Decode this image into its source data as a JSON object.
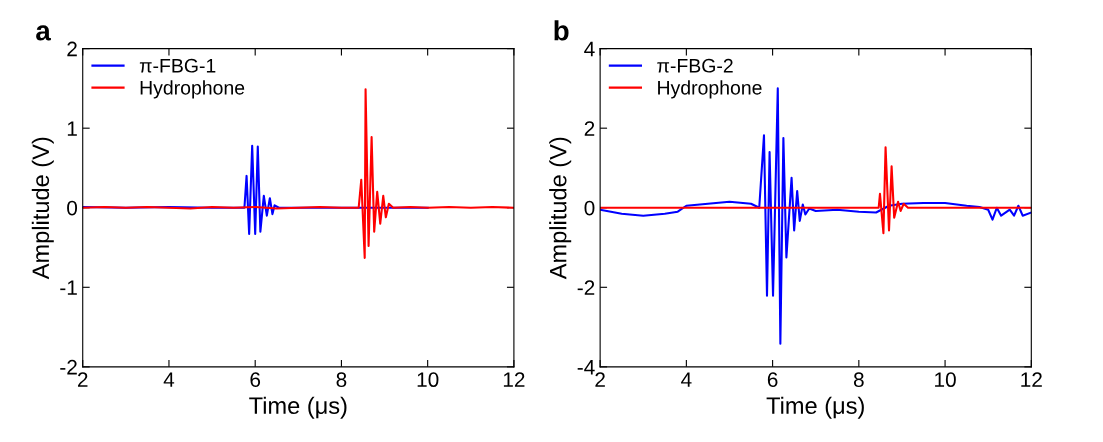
{
  "chart_data": [
    {
      "type": "line",
      "title": "a",
      "xlabel": "Time (μs)",
      "ylabel": "Amplitude (V)",
      "xlim": [
        2,
        12
      ],
      "ylim": [
        -2,
        2
      ],
      "xticks": [
        2,
        4,
        6,
        8,
        10,
        12
      ],
      "yticks": [
        -2,
        -1,
        0,
        1,
        2
      ],
      "legend": "top left",
      "grid": false,
      "series": [
        {
          "name": "π-FBG-1",
          "color": "#0000ff",
          "x": [
            2,
            3,
            4,
            5,
            5.6,
            5.75,
            5.8,
            5.86,
            5.93,
            6.0,
            6.06,
            6.12,
            6.2,
            6.27,
            6.34,
            6.4,
            6.45,
            6.55,
            7,
            8,
            9,
            10
          ],
          "values": [
            0.01,
            0,
            0.01,
            0,
            0,
            0,
            0.4,
            -0.33,
            0.78,
            -0.33,
            0.77,
            -0.3,
            0.15,
            -0.1,
            0.12,
            -0.08,
            0.03,
            0,
            0,
            0,
            0,
            0
          ]
        },
        {
          "name": "Hydrophone",
          "color": "#ff0000",
          "x": [
            2,
            2.5,
            3,
            3.5,
            4,
            4.5,
            5,
            5.5,
            6,
            6.5,
            7,
            7.5,
            8,
            8.4,
            8.46,
            8.54,
            8.56,
            8.63,
            8.7,
            8.76,
            8.83,
            8.9,
            8.97,
            9.03,
            9.1,
            9.2,
            9.6,
            10,
            10.5,
            11,
            11.5,
            12
          ],
          "values": [
            0,
            0.01,
            0,
            0.01,
            0,
            -0.01,
            0.01,
            0,
            0.01,
            -0.01,
            0,
            0.01,
            0,
            0,
            0.35,
            -0.63,
            1.49,
            -0.48,
            0.89,
            -0.3,
            0.2,
            -0.2,
            0.15,
            -0.12,
            0.05,
            0,
            0.01,
            0,
            0.01,
            0,
            0.01,
            0
          ]
        }
      ]
    },
    {
      "type": "line",
      "title": "b",
      "xlabel": "Time (μs)",
      "ylabel": "Amplitude (V)",
      "xlim": [
        2,
        12
      ],
      "ylim": [
        -4,
        4
      ],
      "xticks": [
        2,
        4,
        6,
        8,
        10,
        12
      ],
      "yticks": [
        -4,
        -2,
        0,
        2,
        4
      ],
      "legend": "top left",
      "grid": false,
      "series": [
        {
          "name": "π-FBG-2",
          "color": "#0000ff",
          "x": [
            2,
            2.5,
            3,
            3.5,
            3.8,
            4,
            4.5,
            5,
            5.5,
            5.69,
            5.8,
            5.87,
            5.93,
            6.01,
            6.12,
            6.18,
            6.25,
            6.32,
            6.44,
            6.5,
            6.57,
            6.63,
            6.7,
            6.76,
            6.85,
            7,
            7.5,
            8,
            8.4,
            8.7,
            9,
            9.5,
            10,
            10.5,
            10.8,
            11,
            11.1,
            11.2,
            11.3,
            11.5,
            11.6,
            11.7,
            11.8,
            12
          ],
          "values": [
            -0.05,
            -0.15,
            -0.2,
            -0.15,
            -0.1,
            0.05,
            0.1,
            0.15,
            0.1,
            0,
            1.82,
            -2.21,
            1.4,
            -2.21,
            3.0,
            -3.42,
            1.75,
            -1.25,
            0.75,
            -0.57,
            0.42,
            -0.33,
            0.08,
            -0.17,
            -0.02,
            -0.08,
            -0.05,
            -0.1,
            -0.12,
            0.05,
            0.1,
            0.12,
            0.12,
            0.05,
            0.02,
            -0.05,
            -0.3,
            0,
            -0.2,
            -0.05,
            -0.2,
            0.05,
            -0.2,
            -0.12
          ]
        },
        {
          "name": "Hydrophone",
          "color": "#ff0000",
          "x": [
            2,
            3,
            4,
            5,
            6,
            7,
            8,
            8.46,
            8.49,
            8.57,
            8.62,
            8.7,
            8.76,
            8.82,
            8.91,
            8.97,
            9.04,
            9.14,
            10,
            11,
            12
          ],
          "values": [
            0,
            0,
            0,
            0,
            0,
            0,
            0,
            0,
            0.35,
            -0.64,
            1.52,
            -0.57,
            1.04,
            -0.25,
            0.15,
            -0.08,
            0.1,
            0,
            0,
            0,
            0
          ]
        }
      ]
    }
  ]
}
